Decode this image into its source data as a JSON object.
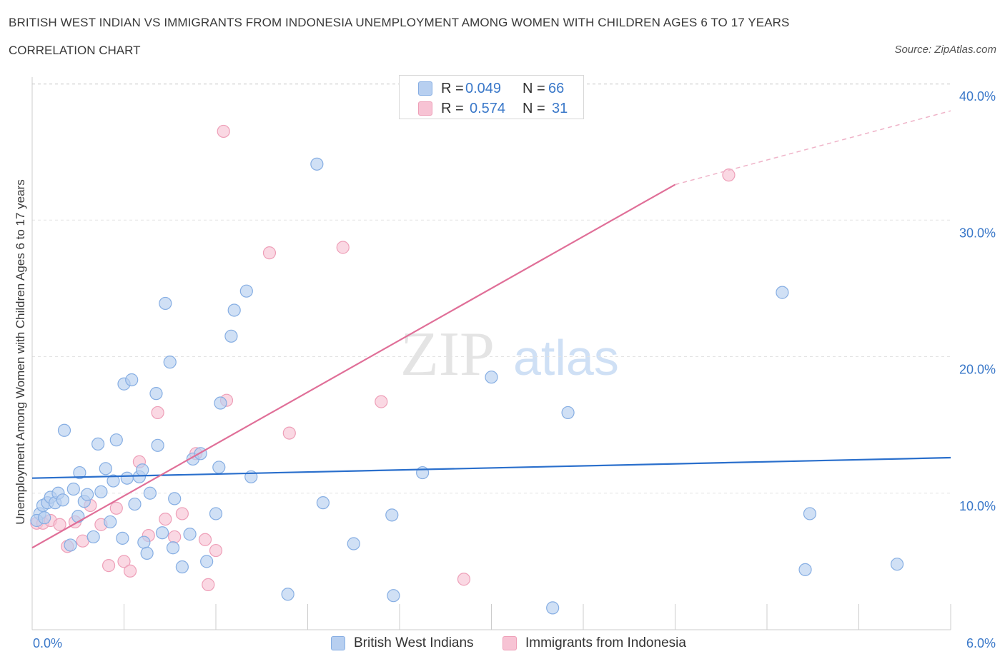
{
  "header": {
    "title": "BRITISH WEST INDIAN VS IMMIGRANTS FROM INDONESIA UNEMPLOYMENT AMONG WOMEN WITH CHILDREN AGES 6 TO 17 YEARS",
    "subtitle": "CORRELATION CHART",
    "source": "Source: ZipAtlas.com"
  },
  "stats": [
    {
      "r_label": "R =",
      "r_value": "0.049",
      "n_label": "N =",
      "n_value": "66"
    },
    {
      "r_label": "R =",
      "r_value": "0.574",
      "n_label": "N =",
      "n_value": "31"
    }
  ],
  "legend": {
    "series_a": "British West Indians",
    "series_b": "Immigrants from Indonesia"
  },
  "watermark": {
    "zip": "ZIP",
    "atlas": "atlas"
  },
  "colors": {
    "series_a_fill": "#b7cff0",
    "series_a_stroke": "#86aee3",
    "series_a_line": "#2a6fcc",
    "series_b_fill": "#f7c3d4",
    "series_b_stroke": "#ee9fb8",
    "series_b_line": "#e06f98",
    "accent_text": "#3a78c9",
    "grid": "#e3e3e3"
  },
  "chart_data": {
    "type": "scatter",
    "title": "BRITISH WEST INDIAN VS IMMIGRANTS FROM INDONESIA UNEMPLOYMENT AMONG WOMEN WITH CHILDREN AGES 6 TO 17 YEARS",
    "xlabel": "",
    "ylabel": "Unemployment Among Women with Children Ages 6 to 17 years",
    "xlim": [
      0,
      6
    ],
    "ylim": [
      0,
      40
    ],
    "x_tick_labels": [
      "0.0%",
      "6.0%"
    ],
    "y_ticks": [
      10,
      20,
      30,
      40
    ],
    "y_tick_labels": [
      "10.0%",
      "20.0%",
      "30.0%",
      "40.0%"
    ],
    "grid": true,
    "series": [
      {
        "name": "British West Indians",
        "R": 0.049,
        "N": 66,
        "trend": {
          "x0": 0,
          "y0": 11.1,
          "x1": 6.0,
          "y1": 12.6
        },
        "points": [
          [
            0.05,
            8.5
          ],
          [
            0.07,
            9.1
          ],
          [
            0.1,
            9.3
          ],
          [
            0.12,
            9.7
          ],
          [
            0.15,
            9.3
          ],
          [
            0.17,
            10.0
          ],
          [
            0.2,
            9.5
          ],
          [
            0.21,
            14.6
          ],
          [
            0.25,
            6.2
          ],
          [
            0.27,
            10.3
          ],
          [
            0.3,
            8.3
          ],
          [
            0.34,
            9.4
          ],
          [
            0.36,
            9.9
          ],
          [
            0.4,
            6.8
          ],
          [
            0.45,
            10.1
          ],
          [
            0.48,
            11.8
          ],
          [
            0.51,
            7.9
          ],
          [
            0.53,
            10.9
          ],
          [
            0.55,
            13.9
          ],
          [
            0.59,
            6.7
          ],
          [
            0.6,
            18.0
          ],
          [
            0.62,
            11.1
          ],
          [
            0.65,
            18.3
          ],
          [
            0.67,
            9.2
          ],
          [
            0.7,
            11.2
          ],
          [
            0.72,
            11.7
          ],
          [
            0.73,
            6.4
          ],
          [
            0.75,
            5.6
          ],
          [
            0.77,
            10.0
          ],
          [
            0.81,
            17.3
          ],
          [
            0.82,
            13.5
          ],
          [
            0.85,
            7.1
          ],
          [
            0.87,
            23.9
          ],
          [
            0.9,
            19.6
          ],
          [
            0.93,
            9.6
          ],
          [
            0.98,
            4.6
          ],
          [
            1.03,
            7.0
          ],
          [
            1.05,
            12.5
          ],
          [
            1.1,
            12.9
          ],
          [
            1.14,
            5.0
          ],
          [
            1.2,
            8.5
          ],
          [
            1.22,
            11.9
          ],
          [
            1.23,
            16.6
          ],
          [
            1.3,
            21.5
          ],
          [
            1.32,
            23.4
          ],
          [
            1.4,
            24.8
          ],
          [
            1.43,
            11.2
          ],
          [
            1.86,
            34.1
          ],
          [
            1.67,
            2.6
          ],
          [
            1.9,
            9.3
          ],
          [
            2.1,
            6.3
          ],
          [
            2.35,
            8.4
          ],
          [
            2.36,
            2.5
          ],
          [
            2.55,
            11.5
          ],
          [
            3.0,
            18.5
          ],
          [
            3.4,
            1.6
          ],
          [
            3.5,
            15.9
          ],
          [
            4.9,
            24.7
          ],
          [
            5.05,
            4.4
          ],
          [
            5.08,
            8.5
          ],
          [
            5.65,
            4.8
          ],
          [
            0.03,
            8.0
          ],
          [
            0.08,
            8.2
          ],
          [
            0.31,
            11.5
          ],
          [
            0.43,
            13.6
          ],
          [
            0.92,
            6.0
          ]
        ]
      },
      {
        "name": "Immigrants from Indonesia",
        "R": 0.574,
        "N": 31,
        "trend": {
          "x0": 0,
          "y0": 6.0,
          "x1": 4.2,
          "y1": 32.6
        },
        "trend_dashed": {
          "x0": 4.2,
          "y0": 32.6,
          "x1": 6.0,
          "y1": 38.0
        },
        "points": [
          [
            0.03,
            7.8
          ],
          [
            0.07,
            7.8
          ],
          [
            0.12,
            8.0
          ],
          [
            0.18,
            7.7
          ],
          [
            0.23,
            6.1
          ],
          [
            0.28,
            7.9
          ],
          [
            0.33,
            6.5
          ],
          [
            0.38,
            9.1
          ],
          [
            0.45,
            7.7
          ],
          [
            0.5,
            4.7
          ],
          [
            0.55,
            8.9
          ],
          [
            0.6,
            5.0
          ],
          [
            0.64,
            4.3
          ],
          [
            0.7,
            12.3
          ],
          [
            0.76,
            6.9
          ],
          [
            0.82,
            15.9
          ],
          [
            0.87,
            8.1
          ],
          [
            0.93,
            6.8
          ],
          [
            0.98,
            8.5
          ],
          [
            1.07,
            12.9
          ],
          [
            1.13,
            6.6
          ],
          [
            1.15,
            3.3
          ],
          [
            1.2,
            5.8
          ],
          [
            1.27,
            16.8
          ],
          [
            1.25,
            36.5
          ],
          [
            1.55,
            27.6
          ],
          [
            1.68,
            14.4
          ],
          [
            2.03,
            28.0
          ],
          [
            2.28,
            16.7
          ],
          [
            2.82,
            3.7
          ],
          [
            4.55,
            33.3
          ]
        ]
      }
    ]
  }
}
